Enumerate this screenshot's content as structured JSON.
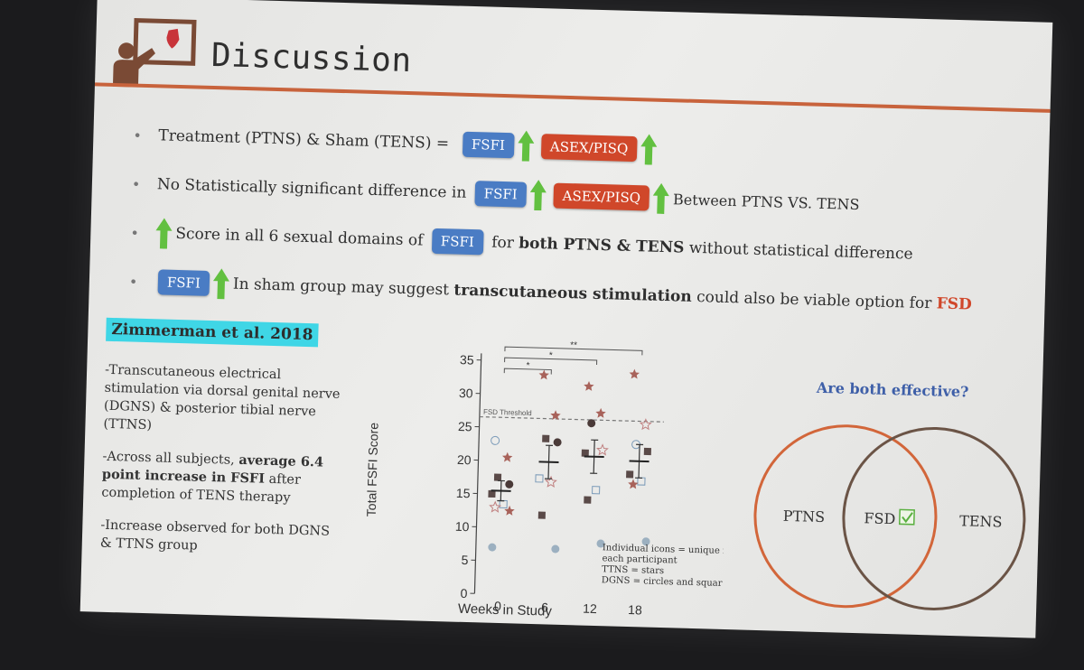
{
  "slide": {
    "title": "Discussion",
    "accent_color": "#c8633c",
    "bullets": {
      "b1": {
        "prefix": "Treatment (PTNS) & Sham (TENS) =",
        "tag1": "FSFI",
        "tag2": "ASEX/PISQ"
      },
      "b2": {
        "prefix": "No Statistically significant difference in",
        "tag1": "FSFI",
        "tag2": "ASEX/PISQ",
        "suffix": "Between PTNS VS. TENS"
      },
      "b3": {
        "text_a": "Score in all 6 sexual domains of",
        "tag1": "FSFI",
        "text_b": "for",
        "bold": "both PTNS & TENS",
        "text_c": "without statistical difference"
      },
      "b4": {
        "tag1": "FSFI",
        "text_a": "In sham group may suggest",
        "bold": "transcutaneous stimulation",
        "text_b": "could also be viable option for",
        "highlight": "FSD"
      }
    },
    "reference": "Zimmerman et al. 2018",
    "notes": {
      "n1": "-Transcutaneous electrical stimulation via dorsal genital nerve (DGNS) & posterior tibial nerve (TTNS)",
      "n2_pre": "-Across all subjects,",
      "n2_bold": "average 6.4 point increase in FSFI",
      "n2_post": "after completion of TENS therapy",
      "n3": "-Increase observed for both DGNS & TTNS group"
    },
    "venn": {
      "question": "Are both effective?",
      "left": "PTNS",
      "center": "FSD",
      "right": "TENS",
      "left_color": "#d2663a",
      "right_color": "#6b5446"
    }
  },
  "chart_data": {
    "type": "scatter",
    "xlabel": "Weeks in Study",
    "ylabel": "Total FSFI Score",
    "x_ticks": [
      0,
      6,
      12,
      18
    ],
    "y_ticks": [
      0,
      5,
      10,
      15,
      20,
      25,
      30,
      35
    ],
    "ylim": [
      0,
      36
    ],
    "threshold": {
      "label": "FSD Threshold",
      "value": 26.5
    },
    "significance": [
      "*",
      "*",
      "**"
    ],
    "means": [
      {
        "x": 0,
        "y": 15.5,
        "err": 1.5
      },
      {
        "x": 6,
        "y": 20,
        "err": 2.5
      },
      {
        "x": 12,
        "y": 21,
        "err": 2.5
      },
      {
        "x": 18,
        "y": 20.5,
        "err": 2.5
      }
    ],
    "points": [
      {
        "x": 0,
        "y": 23,
        "shape": "circle-open"
      },
      {
        "x": 0,
        "y": 20.5,
        "shape": "star"
      },
      {
        "x": 0,
        "y": 17.5,
        "shape": "square"
      },
      {
        "x": 0,
        "y": 16.5,
        "shape": "circle"
      },
      {
        "x": 0,
        "y": 15,
        "shape": "square"
      },
      {
        "x": 0,
        "y": 13.5,
        "shape": "square-open"
      },
      {
        "x": 0,
        "y": 13,
        "shape": "star-open"
      },
      {
        "x": 0,
        "y": 12.5,
        "shape": "star"
      },
      {
        "x": 0,
        "y": 7,
        "shape": "circle-gray"
      },
      {
        "x": 6,
        "y": 33,
        "shape": "star"
      },
      {
        "x": 6,
        "y": 27,
        "shape": "star"
      },
      {
        "x": 6,
        "y": 23.5,
        "shape": "square"
      },
      {
        "x": 6,
        "y": 23,
        "shape": "circle"
      },
      {
        "x": 6,
        "y": 17.5,
        "shape": "square-open"
      },
      {
        "x": 6,
        "y": 17,
        "shape": "star-open"
      },
      {
        "x": 6,
        "y": 12,
        "shape": "square"
      },
      {
        "x": 6,
        "y": 7,
        "shape": "circle-gray"
      },
      {
        "x": 12,
        "y": 31.5,
        "shape": "star"
      },
      {
        "x": 12,
        "y": 27.5,
        "shape": "star"
      },
      {
        "x": 12,
        "y": 26,
        "shape": "circle"
      },
      {
        "x": 12,
        "y": 22,
        "shape": "star-open"
      },
      {
        "x": 12,
        "y": 21.5,
        "shape": "square"
      },
      {
        "x": 12,
        "y": 16,
        "shape": "square-open"
      },
      {
        "x": 12,
        "y": 14.5,
        "shape": "square"
      },
      {
        "x": 12,
        "y": 8,
        "shape": "circle-gray"
      },
      {
        "x": 18,
        "y": 33.5,
        "shape": "star"
      },
      {
        "x": 18,
        "y": 26,
        "shape": "star-open"
      },
      {
        "x": 18,
        "y": 23,
        "shape": "circle-open"
      },
      {
        "x": 18,
        "y": 22,
        "shape": "square"
      },
      {
        "x": 18,
        "y": 18.5,
        "shape": "square"
      },
      {
        "x": 18,
        "y": 17.5,
        "shape": "square-open"
      },
      {
        "x": 18,
        "y": 17,
        "shape": "star"
      },
      {
        "x": 18,
        "y": 8.5,
        "shape": "circle-gray"
      }
    ],
    "legend_note": [
      "Individual icons = unique for",
      "each participant",
      "TTNS = stars",
      "DGNS = circles and squares"
    ]
  }
}
